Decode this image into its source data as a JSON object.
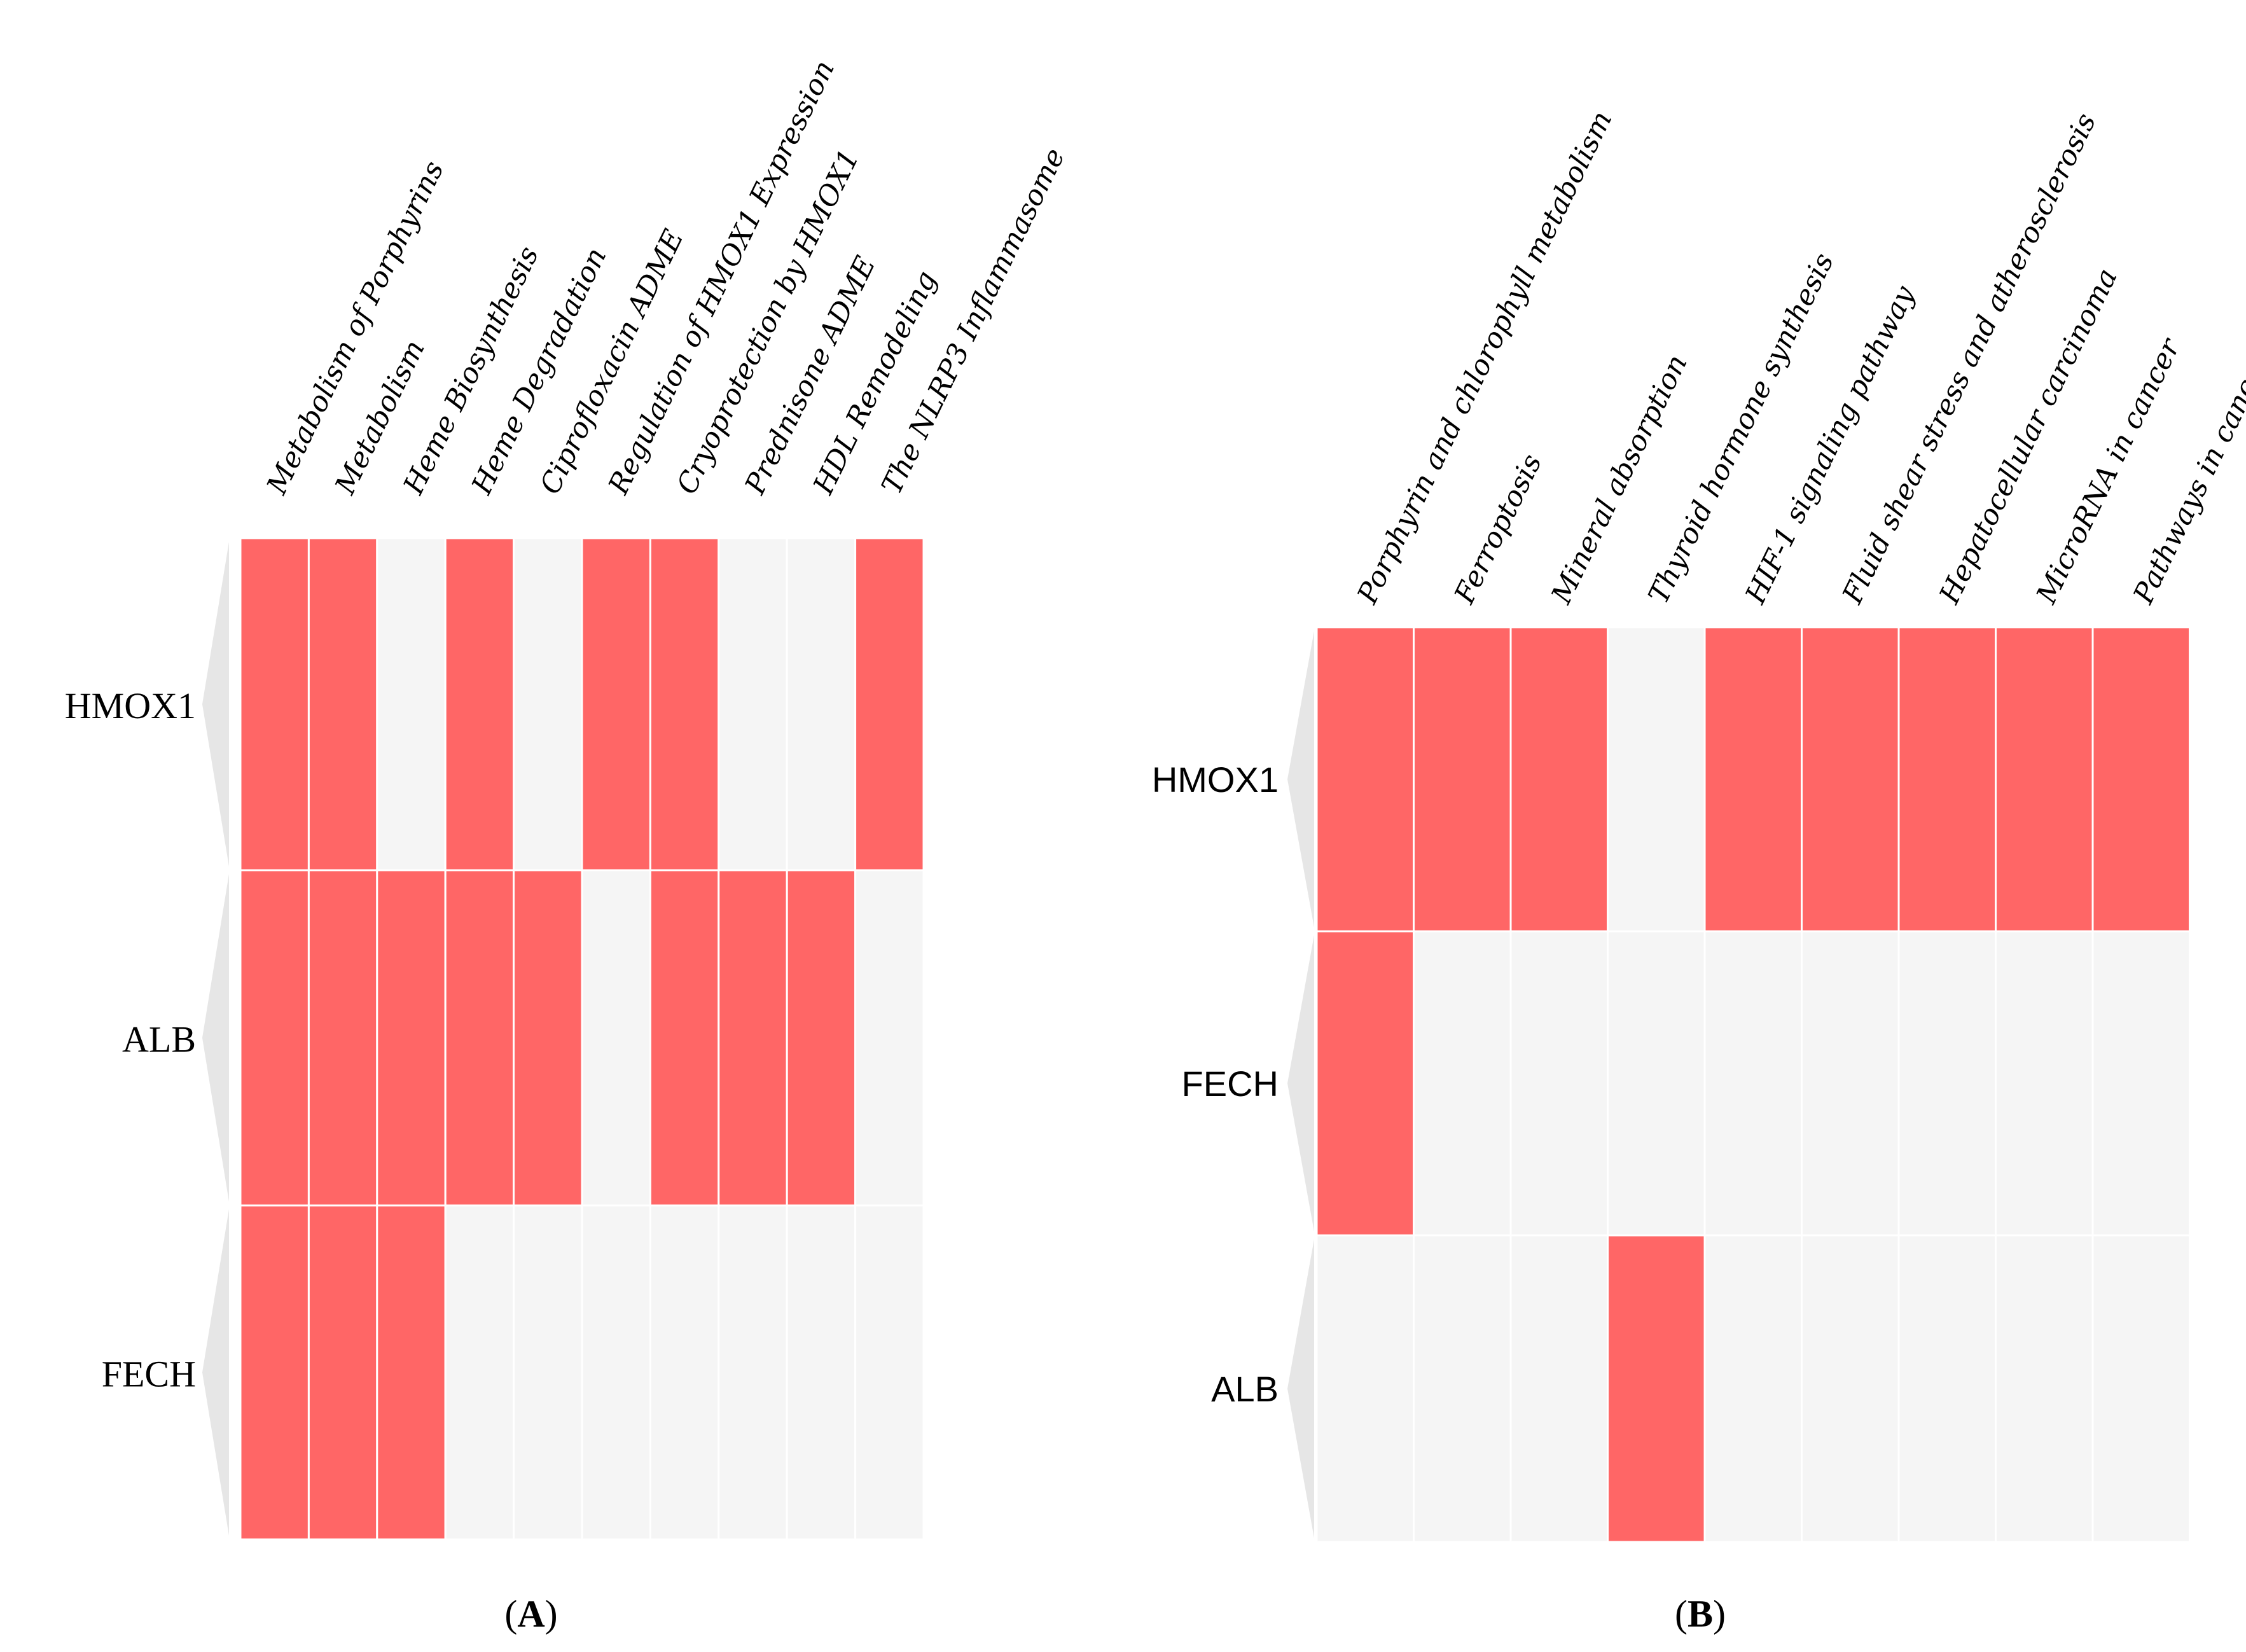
{
  "colors": {
    "hit": "#ff6666",
    "empty": "#f5f5f5",
    "gridline": "#ffffff",
    "bracket": "#e6e6e6"
  },
  "chart_data": [
    {
      "type": "heatmap",
      "panel": "A",
      "panel_label": {
        "open": "(",
        "letter": "A",
        "close": ")"
      },
      "columns": [
        "Metabolism of Porphyrins",
        "Metabolism",
        "Heme Biosynthesis",
        "Heme Degradation",
        "Ciprofloxacin ADME",
        "Regulation of HMOX1 Expression",
        "Cryoprotection  by HMOX1",
        "Prednisone ADME",
        "HDL Remodeling",
        "The NLRP3 Inflammasome"
      ],
      "rows": [
        "HMOX1",
        "ALB",
        "FECH"
      ],
      "matrix": [
        [
          1,
          1,
          0,
          1,
          0,
          1,
          1,
          0,
          0,
          1
        ],
        [
          1,
          1,
          1,
          1,
          1,
          0,
          1,
          1,
          1,
          0
        ],
        [
          1,
          1,
          1,
          0,
          0,
          0,
          0,
          0,
          0,
          0
        ]
      ]
    },
    {
      "type": "heatmap",
      "panel": "B",
      "panel_label": {
        "open": "(",
        "letter": "B",
        "close": ")"
      },
      "columns": [
        "Porphyrin  and chlorophyll  metabolism",
        "Ferroptosis",
        "Mineral absorption",
        "Thyroid  hormone  synthesis",
        "HIF-1  signaling pathway",
        "Fluid  shear  stress and atherosclerosis",
        "Hepatocellular  carcinoma",
        "MicroRNA in cancer",
        "Pathways  in cancer"
      ],
      "rows": [
        "HMOX1",
        "FECH",
        "ALB"
      ],
      "matrix": [
        [
          1,
          1,
          1,
          0,
          1,
          1,
          1,
          1,
          1
        ],
        [
          1,
          0,
          0,
          0,
          0,
          0,
          0,
          0,
          0
        ],
        [
          0,
          0,
          0,
          1,
          0,
          0,
          0,
          0,
          0
        ]
      ]
    }
  ]
}
